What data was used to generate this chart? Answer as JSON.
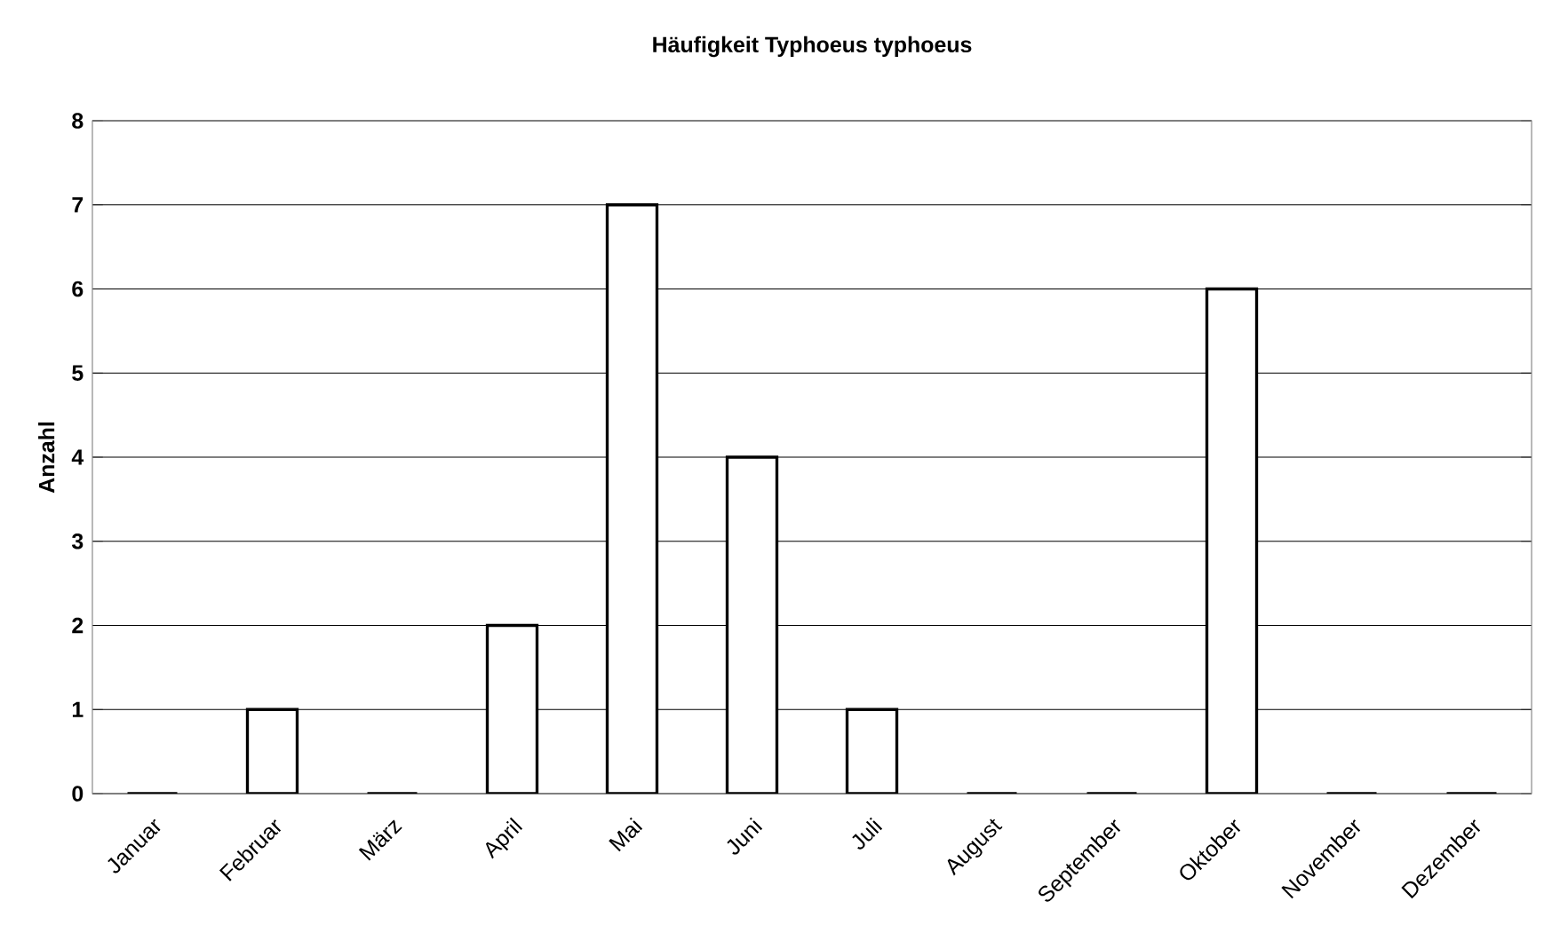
{
  "chart_data": {
    "type": "bar",
    "title": "Häufigkeit Typhoeus typhoeus",
    "ylabel": "Anzahl",
    "categories": [
      "Januar",
      "Februar",
      "März",
      "April",
      "Mai",
      "Juni",
      "Juli",
      "August",
      "September",
      "Oktober",
      "November",
      "Dezember"
    ],
    "values": [
      0,
      1,
      0,
      2,
      7,
      4,
      1,
      0,
      0,
      6,
      0,
      0
    ],
    "color": "#ffffff",
    "ylim": [
      0,
      8
    ],
    "yticks": [
      0,
      1,
      2,
      3,
      4,
      5,
      6,
      7,
      8
    ],
    "grid": "y"
  }
}
